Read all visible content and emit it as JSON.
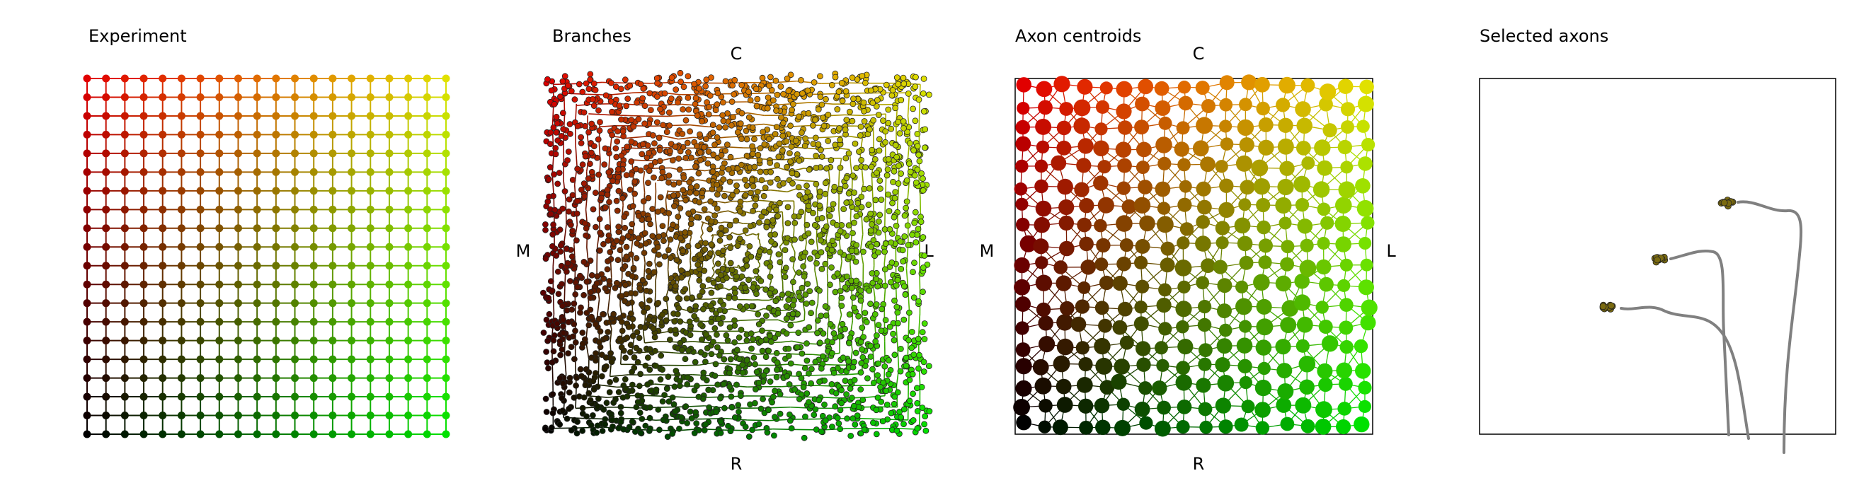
{
  "chart_data": [
    {
      "type": "scatter",
      "title": "Experiment",
      "grid_size": [
        20,
        20
      ],
      "description_of_color": "red increases toward top, green increases toward right",
      "points": "20x20 regular lattice connected to orthogonal neighbours"
    },
    {
      "type": "scatter",
      "title": "Branches",
      "axis_labels": {
        "top": "C",
        "bottom": "R",
        "left": "M",
        "right": "L"
      },
      "points": "dense cloud of branch points, color-coded by position"
    },
    {
      "type": "scatter",
      "title": "Axon centroids",
      "axis_labels": {
        "top": "C",
        "bottom": "R",
        "left": "M",
        "right": "L"
      },
      "points": "~18x18 jittered lattice of centroids linked by triangulation edges"
    },
    {
      "type": "line",
      "title": "Selected axons",
      "axons": 3
    }
  ],
  "colors": {
    "top_left": "#e00000",
    "top_right": "#e0e000",
    "bottom_left": "#000000",
    "bottom_right": "#00e000",
    "axon_line": "#808080",
    "axon_cluster": "#7a6a10"
  }
}
